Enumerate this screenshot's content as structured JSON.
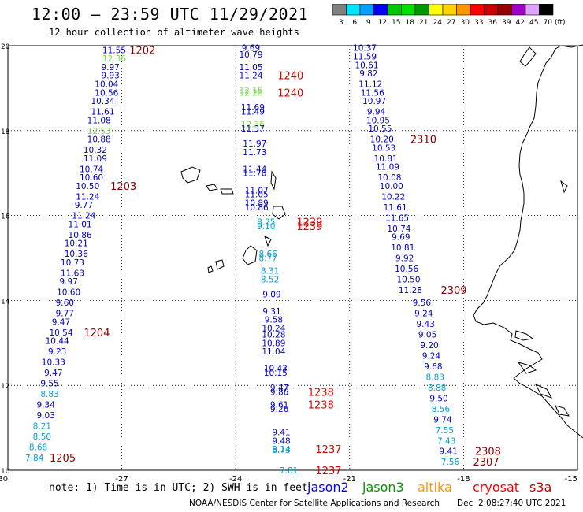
{
  "header": {
    "title": "12:00 – 23:59 UTC 11/29/2021",
    "subtitle": "12 hour collection of altimeter wave heights"
  },
  "legend": {
    "unit_label": "(ft)",
    "items": [
      {
        "label": "3",
        "color": "#808080"
      },
      {
        "label": "6",
        "color": "#00e5ff"
      },
      {
        "label": "9",
        "color": "#00a0ff"
      },
      {
        "label": "12",
        "color": "#0000ff"
      },
      {
        "label": "15",
        "color": "#00c800"
      },
      {
        "label": "18",
        "color": "#00e000"
      },
      {
        "label": "21",
        "color": "#009600"
      },
      {
        "label": "24",
        "color": "#ffff00"
      },
      {
        "label": "27",
        "color": "#ffd200"
      },
      {
        "label": "30",
        "color": "#ff9600"
      },
      {
        "label": "33",
        "color": "#ff0000"
      },
      {
        "label": "36",
        "color": "#c80000"
      },
      {
        "label": "39",
        "color": "#960000"
      },
      {
        "label": "42",
        "color": "#a000c8"
      },
      {
        "label": "45",
        "color": "#e0a0ff"
      },
      {
        "label": "70",
        "color": "#000000"
      }
    ]
  },
  "axes": {
    "lat_labels": [
      "20",
      "18",
      "16",
      "14",
      "12",
      "10"
    ],
    "lon_labels": [
      "-30",
      "-27",
      "-24",
      "-21",
      "-18",
      "-15"
    ]
  },
  "footer": {
    "note": "note: 1) Time is in UTC; 2) SWH is in feet",
    "credits": "NOAA/NESDIS Center for Satellite Applications and Research",
    "timestamp": "Dec  2 08:27:40 UTC 2021",
    "satellites": [
      {
        "name": "jason2",
        "color": "#0000ff"
      },
      {
        "name": "jason3",
        "color": "#009600"
      },
      {
        "name": "altika",
        "color": "#ff9600"
      },
      {
        "name": "cryosat",
        "color": "#ff0000"
      },
      {
        "name": "s3a",
        "color": "#c80000"
      }
    ]
  },
  "colors": {
    "blue": "#0000c8",
    "cyan": "#00a0d8",
    "green": "#78dc50",
    "darkred": "#8b0000",
    "red": "#e00000"
  },
  "tracks": [
    {
      "id": "track-a",
      "readings": [
        {
          "v": "11.55",
          "lat": 19.9,
          "lon": -27.2,
          "c": "blue"
        },
        {
          "v": "12.36",
          "lat": 19.7,
          "lon": -27.2,
          "c": "green"
        },
        {
          "v": "9.97",
          "lat": 19.5,
          "lon": -27.3,
          "c": "blue"
        },
        {
          "v": "9.93",
          "lat": 19.3,
          "lon": -27.3,
          "c": "blue"
        },
        {
          "v": "10.04",
          "lat": 19.1,
          "lon": -27.4,
          "c": "blue"
        },
        {
          "v": "10.56",
          "lat": 18.9,
          "lon": -27.4,
          "c": "blue"
        },
        {
          "v": "10.34",
          "lat": 18.7,
          "lon": -27.5,
          "c": "blue"
        },
        {
          "v": "11.61",
          "lat": 18.45,
          "lon": -27.5,
          "c": "blue"
        },
        {
          "v": "11.08",
          "lat": 18.25,
          "lon": -27.6,
          "c": "blue"
        },
        {
          "v": "12.53",
          "lat": 18.0,
          "lon": -27.6,
          "c": "green"
        },
        {
          "v": "10.88",
          "lat": 17.8,
          "lon": -27.6,
          "c": "blue"
        },
        {
          "v": "10.32",
          "lat": 17.55,
          "lon": -27.7,
          "c": "blue"
        },
        {
          "v": "11.09",
          "lat": 17.35,
          "lon": -27.7,
          "c": "blue"
        },
        {
          "v": "10.74",
          "lat": 17.1,
          "lon": -27.8,
          "c": "blue"
        },
        {
          "v": "10.60",
          "lat": 16.9,
          "lon": -27.8,
          "c": "blue"
        },
        {
          "v": "10.50",
          "lat": 16.7,
          "lon": -27.9,
          "c": "blue"
        },
        {
          "v": "11.24",
          "lat": 16.45,
          "lon": -27.9,
          "c": "blue"
        },
        {
          "v": "9.77",
          "lat": 16.25,
          "lon": -28.0,
          "c": "blue"
        },
        {
          "v": "11.24",
          "lat": 16.0,
          "lon": -28.0,
          "c": "blue"
        },
        {
          "v": "11.01",
          "lat": 15.8,
          "lon": -28.1,
          "c": "blue"
        },
        {
          "v": "10.86",
          "lat": 15.55,
          "lon": -28.1,
          "c": "blue"
        },
        {
          "v": "10.21",
          "lat": 15.35,
          "lon": -28.2,
          "c": "blue"
        },
        {
          "v": "10.36",
          "lat": 15.1,
          "lon": -28.2,
          "c": "blue"
        },
        {
          "v": "10.73",
          "lat": 14.9,
          "lon": -28.3,
          "c": "blue"
        },
        {
          "v": "11.63",
          "lat": 14.65,
          "lon": -28.3,
          "c": "blue"
        },
        {
          "v": "9.97",
          "lat": 14.45,
          "lon": -28.4,
          "c": "blue"
        },
        {
          "v": "10.60",
          "lat": 14.2,
          "lon": -28.4,
          "c": "blue"
        },
        {
          "v": "9.60",
          "lat": 13.95,
          "lon": -28.5,
          "c": "blue"
        },
        {
          "v": "9.77",
          "lat": 13.7,
          "lon": -28.5,
          "c": "blue"
        },
        {
          "v": "9.47",
          "lat": 13.5,
          "lon": -28.6,
          "c": "blue"
        },
        {
          "v": "10.54",
          "lat": 13.25,
          "lon": -28.6,
          "c": "blue"
        },
        {
          "v": "10.44",
          "lat": 13.05,
          "lon": -28.7,
          "c": "blue"
        },
        {
          "v": "9.23",
          "lat": 12.8,
          "lon": -28.7,
          "c": "blue"
        },
        {
          "v": "10.33",
          "lat": 12.55,
          "lon": -28.8,
          "c": "blue"
        },
        {
          "v": "9.47",
          "lat": 12.3,
          "lon": -28.8,
          "c": "blue"
        },
        {
          "v": "9.55",
          "lat": 12.05,
          "lon": -28.9,
          "c": "blue"
        },
        {
          "v": "8.83",
          "lat": 11.8,
          "lon": -28.9,
          "c": "cyan"
        },
        {
          "v": "9.34",
          "lat": 11.55,
          "lon": -29.0,
          "c": "blue"
        },
        {
          "v": "9.03",
          "lat": 11.3,
          "lon": -29.0,
          "c": "blue"
        },
        {
          "v": "8.21",
          "lat": 11.05,
          "lon": -29.1,
          "c": "cyan"
        },
        {
          "v": "8.50",
          "lat": 10.8,
          "lon": -29.1,
          "c": "cyan"
        },
        {
          "v": "8.68",
          "lat": 10.55,
          "lon": -29.2,
          "c": "cyan"
        },
        {
          "v": "7.84",
          "lat": 10.3,
          "lon": -29.3,
          "c": "cyan"
        }
      ]
    },
    {
      "id": "track-b",
      "readings": [
        {
          "v": "9.69",
          "lat": 19.95,
          "lon": -23.6,
          "c": "blue"
        },
        {
          "v": "10.79",
          "lat": 19.8,
          "lon": -23.6,
          "c": "blue"
        },
        {
          "v": "11.05",
          "lat": 19.5,
          "lon": -23.6,
          "c": "blue"
        },
        {
          "v": "11.24",
          "lat": 19.3,
          "lon": -23.6,
          "c": "blue"
        },
        {
          "v": "12.15",
          "lat": 18.95,
          "lon": -23.6,
          "c": "green"
        },
        {
          "v": "12.28",
          "lat": 18.9,
          "lon": -23.6,
          "c": "green"
        },
        {
          "v": "11.69",
          "lat": 18.55,
          "lon": -23.55,
          "c": "blue"
        },
        {
          "v": "11.49",
          "lat": 18.45,
          "lon": -23.55,
          "c": "blue"
        },
        {
          "v": "12.36",
          "lat": 18.15,
          "lon": -23.55,
          "c": "green"
        },
        {
          "v": "11.37",
          "lat": 18.05,
          "lon": -23.55,
          "c": "blue"
        },
        {
          "v": "11.97",
          "lat": 17.7,
          "lon": -23.5,
          "c": "blue"
        },
        {
          "v": "11.73",
          "lat": 17.5,
          "lon": -23.5,
          "c": "blue"
        },
        {
          "v": "11.44",
          "lat": 17.1,
          "lon": -23.5,
          "c": "blue"
        },
        {
          "v": "11.76",
          "lat": 17.0,
          "lon": -23.5,
          "c": "blue"
        },
        {
          "v": "11.07",
          "lat": 16.6,
          "lon": -23.45,
          "c": "blue"
        },
        {
          "v": "11.05",
          "lat": 16.5,
          "lon": -23.45,
          "c": "blue"
        },
        {
          "v": "10.89",
          "lat": 16.3,
          "lon": -23.45,
          "c": "blue"
        },
        {
          "v": "10.86",
          "lat": 16.2,
          "lon": -23.45,
          "c": "blue"
        },
        {
          "v": "8.25",
          "lat": 15.85,
          "lon": -23.2,
          "c": "cyan"
        },
        {
          "v": "9.10",
          "lat": 15.75,
          "lon": -23.2,
          "c": "cyan"
        },
        {
          "v": "8.66",
          "lat": 15.1,
          "lon": -23.15,
          "c": "cyan"
        },
        {
          "v": "8.77",
          "lat": 15.0,
          "lon": -23.15,
          "c": "cyan"
        },
        {
          "v": "8.31",
          "lat": 14.7,
          "lon": -23.1,
          "c": "cyan"
        },
        {
          "v": "8.52",
          "lat": 14.5,
          "lon": -23.1,
          "c": "cyan"
        },
        {
          "v": "9.09",
          "lat": 14.15,
          "lon": -23.05,
          "c": "blue"
        },
        {
          "v": "9.31",
          "lat": 13.75,
          "lon": -23.05,
          "c": "blue"
        },
        {
          "v": "9.58",
          "lat": 13.55,
          "lon": -23.0,
          "c": "blue"
        },
        {
          "v": "10.24",
          "lat": 13.35,
          "lon": -23.0,
          "c": "blue"
        },
        {
          "v": "10.28",
          "lat": 13.2,
          "lon": -23.0,
          "c": "blue"
        },
        {
          "v": "10.89",
          "lat": 13.0,
          "lon": -23.0,
          "c": "blue"
        },
        {
          "v": "11.04",
          "lat": 12.8,
          "lon": -23.0,
          "c": "blue"
        },
        {
          "v": "10.43",
          "lat": 12.4,
          "lon": -22.95,
          "c": "blue"
        },
        {
          "v": "10.15",
          "lat": 12.3,
          "lon": -22.95,
          "c": "blue"
        },
        {
          "v": "9.47",
          "lat": 11.95,
          "lon": -22.85,
          "c": "blue"
        },
        {
          "v": "9.86",
          "lat": 11.85,
          "lon": -22.85,
          "c": "blue"
        },
        {
          "v": "9.61",
          "lat": 11.55,
          "lon": -22.85,
          "c": "blue"
        },
        {
          "v": "9.26",
          "lat": 11.45,
          "lon": -22.85,
          "c": "blue"
        },
        {
          "v": "9.41",
          "lat": 10.9,
          "lon": -22.8,
          "c": "blue"
        },
        {
          "v": "9.48",
          "lat": 10.7,
          "lon": -22.8,
          "c": "blue"
        },
        {
          "v": "8.14",
          "lat": 10.5,
          "lon": -22.8,
          "c": "cyan"
        },
        {
          "v": "8.73",
          "lat": 10.48,
          "lon": -22.8,
          "c": "cyan"
        },
        {
          "v": "7.81",
          "lat": 10.0,
          "lon": -22.6,
          "c": "cyan"
        }
      ]
    },
    {
      "id": "track-c",
      "readings": [
        {
          "v": "10.37",
          "lat": 19.95,
          "lon": -20.6,
          "c": "blue"
        },
        {
          "v": "11.59",
          "lat": 19.75,
          "lon": -20.6,
          "c": "blue"
        },
        {
          "v": "10.61",
          "lat": 19.55,
          "lon": -20.55,
          "c": "blue"
        },
        {
          "v": "9.82",
          "lat": 19.35,
          "lon": -20.5,
          "c": "blue"
        },
        {
          "v": "11.12",
          "lat": 19.1,
          "lon": -20.45,
          "c": "blue"
        },
        {
          "v": "11.56",
          "lat": 18.9,
          "lon": -20.4,
          "c": "blue"
        },
        {
          "v": "10.97",
          "lat": 18.7,
          "lon": -20.35,
          "c": "blue"
        },
        {
          "v": "9.94",
          "lat": 18.45,
          "lon": -20.3,
          "c": "blue"
        },
        {
          "v": "10.95",
          "lat": 18.25,
          "lon": -20.25,
          "c": "blue"
        },
        {
          "v": "10.55",
          "lat": 18.05,
          "lon": -20.2,
          "c": "blue"
        },
        {
          "v": "10.20",
          "lat": 17.8,
          "lon": -20.15,
          "c": "blue"
        },
        {
          "v": "10.53",
          "lat": 17.6,
          "lon": -20.1,
          "c": "blue"
        },
        {
          "v": "10.81",
          "lat": 17.35,
          "lon": -20.05,
          "c": "blue"
        },
        {
          "v": "11.09",
          "lat": 17.15,
          "lon": -20.0,
          "c": "blue"
        },
        {
          "v": "10.08",
          "lat": 16.9,
          "lon": -19.95,
          "c": "blue"
        },
        {
          "v": "10.00",
          "lat": 16.7,
          "lon": -19.9,
          "c": "blue"
        },
        {
          "v": "10.22",
          "lat": 16.45,
          "lon": -19.85,
          "c": "blue"
        },
        {
          "v": "11.61",
          "lat": 16.2,
          "lon": -19.8,
          "c": "blue"
        },
        {
          "v": "11.65",
          "lat": 15.95,
          "lon": -19.75,
          "c": "blue"
        },
        {
          "v": "10.74",
          "lat": 15.7,
          "lon": -19.7,
          "c": "blue"
        },
        {
          "v": "9.69",
          "lat": 15.5,
          "lon": -19.65,
          "c": "blue"
        },
        {
          "v": "10.81",
          "lat": 15.25,
          "lon": -19.6,
          "c": "blue"
        },
        {
          "v": "9.92",
          "lat": 15.0,
          "lon": -19.55,
          "c": "blue"
        },
        {
          "v": "10.56",
          "lat": 14.75,
          "lon": -19.5,
          "c": "blue"
        },
        {
          "v": "10.50",
          "lat": 14.5,
          "lon": -19.45,
          "c": "blue"
        },
        {
          "v": "11.28",
          "lat": 14.25,
          "lon": -19.4,
          "c": "blue"
        },
        {
          "v": "9.56",
          "lat": 13.95,
          "lon": -19.1,
          "c": "blue"
        },
        {
          "v": "9.24",
          "lat": 13.7,
          "lon": -19.05,
          "c": "blue"
        },
        {
          "v": "9.43",
          "lat": 13.45,
          "lon": -19.0,
          "c": "blue"
        },
        {
          "v": "9.05",
          "lat": 13.2,
          "lon": -18.95,
          "c": "blue"
        },
        {
          "v": "9.20",
          "lat": 12.95,
          "lon": -18.9,
          "c": "blue"
        },
        {
          "v": "9.24",
          "lat": 12.7,
          "lon": -18.85,
          "c": "blue"
        },
        {
          "v": "9.68",
          "lat": 12.45,
          "lon": -18.8,
          "c": "blue"
        },
        {
          "v": "8.83",
          "lat": 12.2,
          "lon": -18.75,
          "c": "cyan"
        },
        {
          "v": "8.88",
          "lat": 11.95,
          "lon": -18.7,
          "c": "cyan"
        },
        {
          "v": "9.50",
          "lat": 11.7,
          "lon": -18.65,
          "c": "blue"
        },
        {
          "v": "8.56",
          "lat": 11.45,
          "lon": -18.6,
          "c": "cyan"
        },
        {
          "v": "9.74",
          "lat": 11.2,
          "lon": -18.55,
          "c": "blue"
        },
        {
          "v": "7.55",
          "lat": 10.95,
          "lon": -18.5,
          "c": "cyan"
        },
        {
          "v": "7.43",
          "lat": 10.7,
          "lon": -18.45,
          "c": "cyan"
        },
        {
          "v": "9.41",
          "lat": 10.45,
          "lon": -18.4,
          "c": "blue"
        },
        {
          "v": "7.56",
          "lat": 10.2,
          "lon": -18.35,
          "c": "cyan"
        }
      ]
    }
  ],
  "time_labels": [
    {
      "t": "1202",
      "lat": 19.9,
      "lon": -26.8,
      "c": "darkred"
    },
    {
      "t": "1203",
      "lat": 16.7,
      "lon": -27.3,
      "c": "darkred"
    },
    {
      "t": "1204",
      "lat": 13.25,
      "lon": -28.0,
      "c": "darkred"
    },
    {
      "t": "1205",
      "lat": 10.3,
      "lon": -28.9,
      "c": "darkred"
    },
    {
      "t": "1240",
      "lat": 19.3,
      "lon": -22.9,
      "c": "red"
    },
    {
      "t": "1240",
      "lat": 18.9,
      "lon": -22.9,
      "c": "red"
    },
    {
      "t": "1239",
      "lat": 15.85,
      "lon": -22.4,
      "c": "red"
    },
    {
      "t": "1239",
      "lat": 15.75,
      "lon": -22.4,
      "c": "red"
    },
    {
      "t": "1238",
      "lat": 11.85,
      "lon": -22.1,
      "c": "red"
    },
    {
      "t": "1238",
      "lat": 11.55,
      "lon": -22.1,
      "c": "red"
    },
    {
      "t": "1237",
      "lat": 10.5,
      "lon": -21.9,
      "c": "red"
    },
    {
      "t": "1237",
      "lat": 10.0,
      "lon": -21.9,
      "c": "red"
    },
    {
      "t": "2310",
      "lat": 17.8,
      "lon": -19.4,
      "c": "darkred"
    },
    {
      "t": "2309",
      "lat": 14.25,
      "lon": -18.6,
      "c": "darkred"
    },
    {
      "t": "2308",
      "lat": 10.45,
      "lon": -17.7,
      "c": "darkred"
    },
    {
      "t": "2307",
      "lat": 10.2,
      "lon": -17.75,
      "c": "darkred"
    }
  ]
}
